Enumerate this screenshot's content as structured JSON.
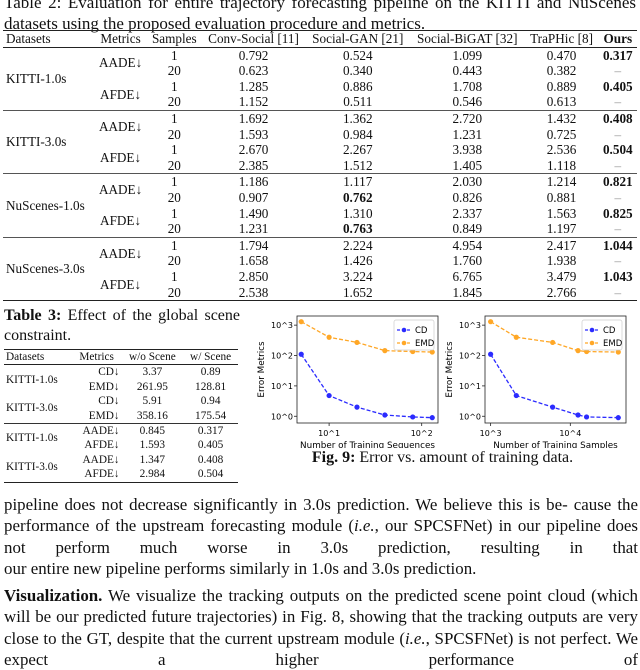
{
  "caption_top": "Table 2: Evaluation for entire trajectory forecasting pipeline on the KITTI and NuScenes datasets using the proposed evaluation procedure and metrics.",
  "table2": {
    "headers": [
      "Datasets",
      "Metrics",
      "Samples",
      "Conv-Social [11]",
      "Social-GAN [21]",
      "Social-BiGAT [32]",
      "TraPHic [8]",
      "Ours"
    ],
    "groups": [
      {
        "dataset": "KITTI-1.0s",
        "metrics": [
          {
            "metric": "AADE↓",
            "rows": [
              [
                "1",
                "0.792",
                "0.524",
                "1.099",
                "0.470",
                "0.317"
              ],
              [
                "20",
                "0.623",
                "0.340",
                "0.443",
                "0.382",
                "–"
              ]
            ]
          },
          {
            "metric": "AFDE↓",
            "rows": [
              [
                "1",
                "1.285",
                "0.886",
                "1.708",
                "0.889",
                "0.405"
              ],
              [
                "20",
                "1.152",
                "0.511",
                "0.546",
                "0.613",
                "–"
              ]
            ]
          }
        ]
      },
      {
        "dataset": "KITTI-3.0s",
        "metrics": [
          {
            "metric": "AADE↓",
            "rows": [
              [
                "1",
                "1.692",
                "1.362",
                "2.720",
                "1.432",
                "0.408"
              ],
              [
                "20",
                "1.593",
                "0.984",
                "1.231",
                "0.725",
                "–"
              ]
            ]
          },
          {
            "metric": "AFDE↓",
            "rows": [
              [
                "1",
                "2.670",
                "2.267",
                "3.938",
                "2.536",
                "0.504"
              ],
              [
                "20",
                "2.385",
                "1.512",
                "1.405",
                "1.118",
                "–"
              ]
            ]
          }
        ]
      },
      {
        "dataset": "NuScenes-1.0s",
        "metrics": [
          {
            "metric": "AADE↓",
            "rows": [
              [
                "1",
                "1.186",
                "1.117",
                "2.030",
                "1.214",
                "0.821"
              ],
              [
                "20",
                "0.907",
                "0.762",
                "0.826",
                "0.881",
                "–"
              ]
            ]
          },
          {
            "metric": "AFDE↓",
            "rows": [
              [
                "1",
                "1.490",
                "1.310",
                "2.337",
                "1.563",
                "0.825"
              ],
              [
                "20",
                "1.231",
                "0.763",
                "0.849",
                "1.197",
                "–"
              ]
            ]
          }
        ]
      },
      {
        "dataset": "NuScenes-3.0s",
        "metrics": [
          {
            "metric": "AADE↓",
            "rows": [
              [
                "1",
                "1.794",
                "2.224",
                "4.954",
                "2.417",
                "1.044"
              ],
              [
                "20",
                "1.658",
                "1.426",
                "1.760",
                "1.938",
                "–"
              ]
            ]
          },
          {
            "metric": "AFDE↓",
            "rows": [
              [
                "1",
                "2.850",
                "3.224",
                "6.765",
                "3.479",
                "1.043"
              ],
              [
                "20",
                "2.538",
                "1.652",
                "1.845",
                "2.766",
                "–"
              ]
            ]
          }
        ]
      }
    ],
    "bold_cells": [
      "0-0-0-5",
      "0-1-0-5",
      "1-0-0-5",
      "1-1-0-5",
      "2-0-0-5",
      "2-1-0-5",
      "3-0-0-5",
      "3-1-0-5",
      "2-0-1-2",
      "2-1-1-2"
    ]
  },
  "table3": {
    "caption_label": "Table 3:",
    "caption_text": " Effect of the global scene constraint.",
    "headers": [
      "Datasets",
      "Metrics",
      "w/o Scene",
      "w/ Scene"
    ],
    "groups": [
      {
        "dataset": "KITTI-1.0s",
        "rows": [
          [
            "CD↓",
            "3.37",
            "0.89"
          ],
          [
            "EMD↓",
            "261.95",
            "128.81"
          ]
        ]
      },
      {
        "dataset": "KITTI-3.0s",
        "rows": [
          [
            "CD↓",
            "5.91",
            "0.94"
          ],
          [
            "EMD↓",
            "358.16",
            "175.54"
          ]
        ]
      },
      {
        "dataset": "KITTI-1.0s",
        "rows": [
          [
            "AADE↓",
            "0.845",
            "0.317"
          ],
          [
            "AFDE↓",
            "1.593",
            "0.405"
          ]
        ]
      },
      {
        "dataset": "KITTI-3.0s",
        "rows": [
          [
            "AADE↓",
            "1.347",
            "0.408"
          ],
          [
            "AFDE↓",
            "2.984",
            "0.504"
          ]
        ]
      }
    ]
  },
  "chart_data": [
    {
      "type": "line",
      "xscale": "log",
      "yscale": "log",
      "xlabel": "Number of Training Sequences",
      "ylabel": "Error Metrics",
      "xlim": [
        4.5,
        150
      ],
      "ylim": [
        0.6,
        2000
      ],
      "xticks": [
        {
          "v": 10,
          "label": "10^1"
        },
        {
          "v": 100,
          "label": "10^2"
        }
      ],
      "yticks": [
        {
          "v": 1,
          "label": "10^0"
        },
        {
          "v": 10,
          "label": "10^1"
        },
        {
          "v": 100,
          "label": "10^2"
        },
        {
          "v": 1000,
          "label": "10^3"
        }
      ],
      "legend": "top-right",
      "series": [
        {
          "name": "CD",
          "color": "#2b2bff",
          "x": [
            5,
            10,
            20,
            40,
            80,
            130
          ],
          "y": [
            110,
            4.8,
            2.0,
            1.1,
            0.95,
            0.9
          ]
        },
        {
          "name": "EMD",
          "color": "#ffa726",
          "x": [
            5,
            10,
            20,
            40,
            80,
            130
          ],
          "y": [
            1300,
            400,
            270,
            145,
            135,
            130
          ]
        }
      ]
    },
    {
      "type": "line",
      "xscale": "log",
      "yscale": "log",
      "xlabel": "Number of Training Samples",
      "ylabel": "Error Metrics",
      "xlim": [
        850,
        50000
      ],
      "ylim": [
        0.6,
        2000
      ],
      "xticks": [
        {
          "v": 1000,
          "label": "10^3"
        },
        {
          "v": 10000,
          "label": "10^4"
        }
      ],
      "yticks": [
        {
          "v": 1,
          "label": "10^0"
        },
        {
          "v": 10,
          "label": "10^1"
        },
        {
          "v": 100,
          "label": "10^2"
        },
        {
          "v": 1000,
          "label": "10^3"
        }
      ],
      "legend": "top-right",
      "series": [
        {
          "name": "CD",
          "color": "#2b2bff",
          "x": [
            1000,
            2100,
            6000,
            12500,
            16000,
            40000
          ],
          "y": [
            110,
            4.8,
            2.0,
            1.1,
            0.95,
            0.9
          ]
        },
        {
          "name": "EMD",
          "color": "#ffa726",
          "x": [
            1000,
            2100,
            6000,
            12500,
            16000,
            40000
          ],
          "y": [
            1300,
            400,
            270,
            145,
            135,
            130
          ]
        }
      ]
    }
  ],
  "fig9": {
    "label": "Fig. 9:",
    "text": " Error vs. amount of training data."
  },
  "body": {
    "p1": [
      "pipeline does not decrease significantly in 3.0s prediction. We believe this is be-",
      "cause the performance of the upstream forecasting module (",
      "i.e.",
      ", our SPCSFNet)",
      "in our pipeline does not perform much worse in 3.0s prediction, resulting in that",
      "our entire new pipeline performs similarly in 1.0s and 3.0s prediction."
    ],
    "p2_head": "Visualization.",
    "p2": [
      " We visualize the tracking outputs on the predicted scene point cloud (which will be our predicted future trajectories) in Fig. 8, showing that the tracking outputs are very close to the GT, despite that the current upstream module (",
      "i.e.",
      ", SPCSFNet) is not perfect. We expect a higher performance of"
    ]
  }
}
